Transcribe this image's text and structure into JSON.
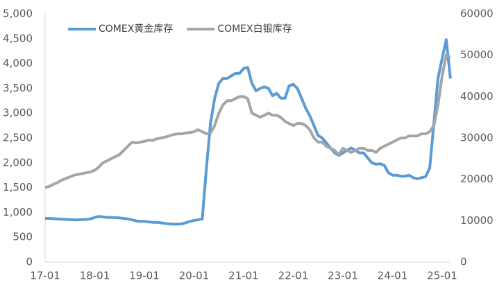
{
  "chart_data": {
    "type": "line",
    "categories": [
      "17-01",
      null,
      null,
      null,
      null,
      null,
      null,
      null,
      null,
      null,
      null,
      null,
      "18-01",
      null,
      null,
      null,
      null,
      null,
      null,
      null,
      null,
      null,
      null,
      null,
      "19-01",
      null,
      null,
      null,
      null,
      null,
      null,
      null,
      null,
      null,
      null,
      null,
      "20-01",
      null,
      null,
      null,
      null,
      null,
      null,
      null,
      null,
      null,
      null,
      null,
      "21-01",
      null,
      null,
      null,
      null,
      null,
      null,
      null,
      null,
      null,
      null,
      null,
      "22-01",
      null,
      null,
      null,
      null,
      null,
      null,
      null,
      null,
      null,
      null,
      null,
      "23-01",
      null,
      null,
      null,
      null,
      null,
      null,
      null,
      null,
      null,
      null,
      null,
      "24-01",
      null,
      null,
      null,
      null,
      null,
      null,
      null,
      null,
      null,
      null,
      null,
      "25-01",
      null,
      null
    ],
    "series": [
      {
        "name": "COMEX黄金库存",
        "color": "#5b9bd5",
        "axis": "y",
        "values": [
          880,
          880,
          875,
          870,
          865,
          860,
          855,
          850,
          850,
          855,
          860,
          870,
          900,
          920,
          910,
          900,
          900,
          895,
          890,
          880,
          870,
          850,
          830,
          820,
          820,
          810,
          800,
          800,
          790,
          780,
          770,
          765,
          765,
          770,
          790,
          820,
          840,
          850,
          870,
          1900,
          2800,
          3300,
          3600,
          3700,
          3700,
          3750,
          3800,
          3800,
          3900,
          3920,
          3600,
          3450,
          3500,
          3530,
          3500,
          3350,
          3400,
          3300,
          3300,
          3550,
          3580,
          3500,
          3300,
          3100,
          2950,
          2750,
          2550,
          2500,
          2400,
          2300,
          2200,
          2150,
          2200,
          2250,
          2300,
          2250,
          2200,
          2200,
          2100,
          2000,
          1970,
          1980,
          1950,
          1800,
          1750,
          1750,
          1730,
          1730,
          1750,
          1700,
          1680,
          1700,
          1720,
          1900,
          2800,
          3700,
          4100,
          4480,
          3700
        ]
      },
      {
        "name": "COMEX白银库存",
        "color": "#a5a5a5",
        "axis": "y2",
        "values": [
          18000,
          18300,
          18800,
          19200,
          19800,
          20200,
          20600,
          21000,
          21200,
          21400,
          21600,
          21800,
          22200,
          23000,
          24000,
          24500,
          25000,
          25500,
          26000,
          27000,
          28000,
          29000,
          28800,
          29000,
          29200,
          29500,
          29400,
          29800,
          30000,
          30200,
          30500,
          30800,
          31000,
          31000,
          31200,
          31300,
          31500,
          32000,
          31500,
          31000,
          31200,
          33000,
          36000,
          38000,
          39000,
          39000,
          39500,
          40000,
          40000,
          39500,
          36000,
          35500,
          35000,
          35500,
          36000,
          35500,
          35500,
          35000,
          34000,
          33500,
          33000,
          33500,
          33500,
          33000,
          32000,
          30000,
          29000,
          29000,
          28000,
          27500,
          27000,
          26000,
          27500,
          27000,
          26500,
          27000,
          27500,
          27500,
          27000,
          27000,
          26500,
          27500,
          28000,
          28500,
          29000,
          29500,
          30000,
          30000,
          30500,
          30500,
          30500,
          31000,
          31000,
          31500,
          33000,
          38000,
          45000,
          50000,
          49500
        ]
      }
    ],
    "ylim": [
      0,
      5000
    ],
    "yticks": [
      0,
      500,
      {
        "value": 1000,
        "label": "1,000"
      },
      {
        "value": 1500,
        "label": "1,500"
      },
      {
        "value": 2000,
        "label": "2,000"
      },
      {
        "value": 2500,
        "label": "2,500"
      },
      {
        "value": 3000,
        "label": "3,000"
      },
      {
        "value": 3500,
        "label": "3,500"
      },
      {
        "value": 4000,
        "label": "4,000"
      },
      {
        "value": 4500,
        "label": "4,500"
      },
      {
        "value": 5000,
        "label": "5,000"
      }
    ],
    "y2lim": [
      0,
      60000
    ],
    "y2ticks": [
      0,
      10000,
      20000,
      30000,
      40000,
      50000,
      60000
    ],
    "legend": "top-left"
  }
}
